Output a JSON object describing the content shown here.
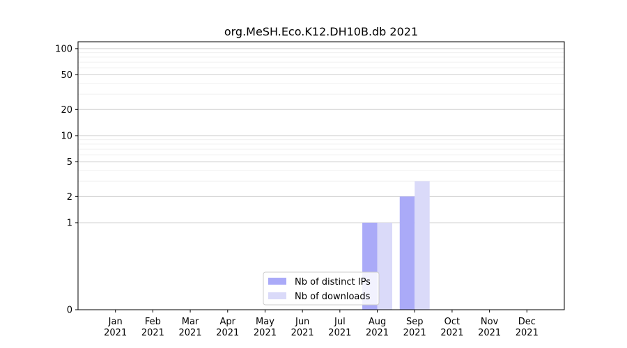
{
  "chart_data": {
    "type": "bar",
    "title": "org.MeSH.Eco.K12.DH10B.db 2021",
    "xlabel": "",
    "ylabel": "",
    "y_scale": "symlog",
    "ylim": [
      0,
      120
    ],
    "yticks": [
      0,
      1,
      2,
      5,
      10,
      20,
      50,
      100
    ],
    "grid": true,
    "legend_position": "lower-center",
    "categories": [
      "Jan\n2021",
      "Feb\n2021",
      "Mar\n2021",
      "Apr\n2021",
      "May\n2021",
      "Jun\n2021",
      "Jul\n2021",
      "Aug\n2021",
      "Sep\n2021",
      "Oct\n2021",
      "Nov\n2021",
      "Dec\n2021"
    ],
    "series": [
      {
        "name": "Nb of distinct IPs",
        "color": "#aaaaf8",
        "values": [
          0,
          0,
          0,
          0,
          0,
          0,
          0,
          1,
          2,
          0,
          0,
          0
        ]
      },
      {
        "name": "Nb of downloads",
        "color": "#dadaf9",
        "values": [
          0,
          0,
          0,
          0,
          0,
          0,
          0,
          1,
          3,
          0,
          0,
          0
        ]
      }
    ]
  }
}
